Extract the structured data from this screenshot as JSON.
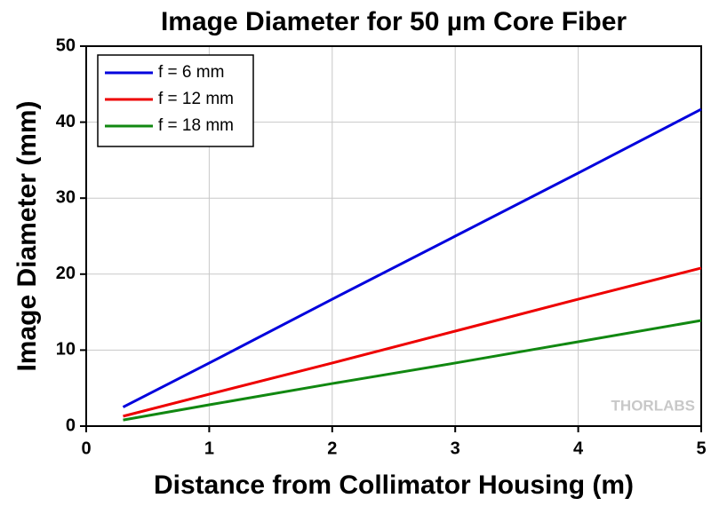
{
  "chart_data": {
    "type": "line",
    "title": "Image Diameter for 50 µm Core Fiber",
    "x_label": "Distance from Collimator Housing (m)",
    "y_label": "Image Diameter (mm)",
    "watermark": "THORLABS",
    "x": [
      0.3,
      1,
      2,
      3,
      4,
      5
    ],
    "series": [
      {
        "name": "f = 6 mm",
        "color": "#0000dd",
        "values": [
          2.5,
          8.3,
          16.7,
          25.0,
          33.3,
          41.7
        ]
      },
      {
        "name": "f = 12 mm",
        "color": "#ee0000",
        "values": [
          1.3,
          4.2,
          8.3,
          12.5,
          16.7,
          20.8
        ]
      },
      {
        "name": "f = 18 mm",
        "color": "#118811",
        "values": [
          0.8,
          2.8,
          5.6,
          8.3,
          11.1,
          13.9
        ]
      }
    ],
    "xlim": [
      0,
      5
    ],
    "xticks": [
      0,
      1,
      2,
      3,
      4,
      5
    ],
    "ylim": [
      0,
      50
    ],
    "yticks": [
      0,
      10,
      20,
      30,
      40,
      50
    ],
    "grid": true,
    "legend": "upper-left"
  }
}
